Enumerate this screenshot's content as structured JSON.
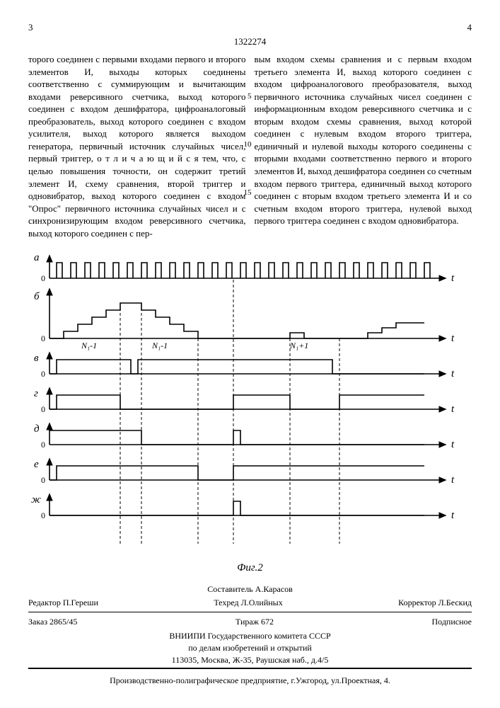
{
  "page": {
    "left_num": "3",
    "right_num": "4",
    "patent": "1322274"
  },
  "text": {
    "col_left": "торого соединен с первыми входами первого и второго элементов И, выходы которых соединены соответственно с суммирующим и вычитающим входами реверсивного счетчика, выход которого соединен с входом дешифратора, цифроаналоговый преобразователь, выход которого соединен с входом усилителя, выход которого является выходом генератора, первичный источник случайных чисел, первый триггер, о т л и ч а ю щ и й с я  тем, что, с целью повышения точности, он содержит третий элемент И, схему сравнения, второй триггер и одновибратор, выход которого соединен с входом \"Опрос\" первичного источника случайных чисел и с синхронизирующим входом реверсивного счетчика, выход которого соединен с пер-",
    "col_right": "вым входом схемы сравнения и с первым входом третьего элемента И, выход которого соединен с входом цифроаналогового преобразователя, выход первичного источника случайных чисел соединен с информационным входом реверсивного счетчика и с вторым входом схемы сравнения, выход которой соединен с нулевым входом второго триггера, единичный и нулевой выходы которого соединены с вторыми входами соответственно первого и второго элементов И, выход дешифратора соединен со счетным входом первого триггера, единичный выход которого соединен с вторым входом третьего элемента И и со счетным входом второго триггера, нулевой выход первого триггера соединен с входом одновибратора."
  },
  "line_markers": {
    "l5": "5",
    "l10": "10",
    "l15": "15"
  },
  "figure": {
    "label": "Фиг.2",
    "axes": [
      "а",
      "б",
      "в",
      "г",
      "д",
      "е",
      "ж"
    ],
    "t_label": "t",
    "zero_label": "0",
    "b_labels": [
      "N₁-1",
      "N₁-1",
      "N₁+1"
    ],
    "colors": {
      "stroke": "#000000",
      "bg": "#ffffff"
    },
    "stroke_width": 1.6,
    "arrow_size": 6
  },
  "footer": {
    "compiler": "Составитель А.Карасов",
    "editor": "Редактор П.Гереши",
    "techred": "Техред Л.Олийных",
    "corrector": "Корректор Л.Бескид",
    "order": "Заказ 2865/45",
    "tirage": "Тираж 672",
    "subscript": "Подписное",
    "org1": "ВНИИПИ Государственного комитета СССР",
    "org2": "по делам изобретений и открытий",
    "addr": "113035, Москва, Ж-35, Раушская наб., д.4/5",
    "print": "Производственно-полиграфическое предприятие, г.Ужгород, ул.Проектная, 4."
  }
}
